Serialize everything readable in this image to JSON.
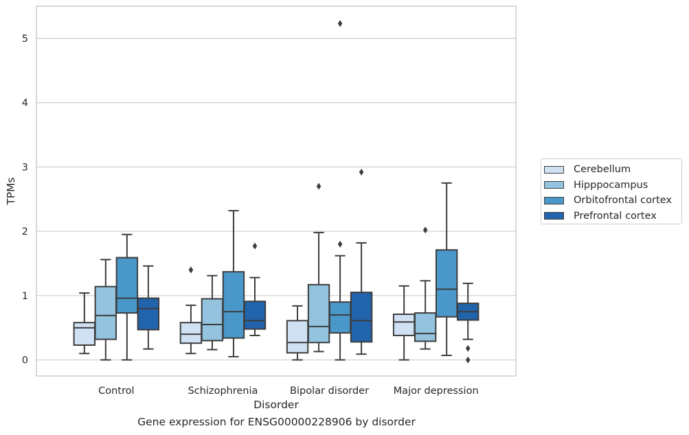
{
  "caption": "Gene expression for ENSG00000228906 by disorder",
  "chart_data": {
    "type": "box",
    "xlabel": "Disorder",
    "ylabel": "TPMs",
    "ylim": [
      -0.25,
      5.5
    ],
    "yticks": [
      0,
      1,
      2,
      3,
      4,
      5
    ],
    "grid": "horizontal",
    "legend_position": "right",
    "categories": [
      "Control",
      "Schizophrenia",
      "Bipolar disorder",
      "Major depression"
    ],
    "series": [
      {
        "name": "Cerebellum",
        "color": "#cfe1f2",
        "boxes": [
          {
            "whislo": 0.1,
            "q1": 0.23,
            "med": 0.5,
            "q3": 0.58,
            "whishi": 1.04,
            "fliers": []
          },
          {
            "whislo": 0.1,
            "q1": 0.26,
            "med": 0.4,
            "q3": 0.58,
            "whishi": 0.85,
            "fliers": [
              1.4
            ]
          },
          {
            "whislo": 0.0,
            "q1": 0.11,
            "med": 0.27,
            "q3": 0.61,
            "whishi": 0.84,
            "fliers": []
          },
          {
            "whislo": 0.0,
            "q1": 0.38,
            "med": 0.59,
            "q3": 0.71,
            "whishi": 1.15,
            "fliers": []
          }
        ]
      },
      {
        "name": "Hipppocampus",
        "color": "#93c3df",
        "boxes": [
          {
            "whislo": 0.0,
            "q1": 0.32,
            "med": 0.69,
            "q3": 1.14,
            "whishi": 1.56,
            "fliers": []
          },
          {
            "whislo": 0.16,
            "q1": 0.3,
            "med": 0.55,
            "q3": 0.95,
            "whishi": 1.31,
            "fliers": []
          },
          {
            "whislo": 0.13,
            "q1": 0.27,
            "med": 0.52,
            "q3": 1.17,
            "whishi": 1.98,
            "fliers": [
              2.7
            ]
          },
          {
            "whislo": 0.17,
            "q1": 0.29,
            "med": 0.41,
            "q3": 0.73,
            "whishi": 1.23,
            "fliers": [
              2.02
            ]
          }
        ]
      },
      {
        "name": "Orbitofrontal cortex",
        "color": "#4a98c9",
        "boxes": [
          {
            "whislo": 0.0,
            "q1": 0.73,
            "med": 0.96,
            "q3": 1.59,
            "whishi": 1.95,
            "fliers": []
          },
          {
            "whislo": 0.05,
            "q1": 0.34,
            "med": 0.75,
            "q3": 1.37,
            "whishi": 2.32,
            "fliers": []
          },
          {
            "whislo": 0.0,
            "q1": 0.42,
            "med": 0.7,
            "q3": 0.9,
            "whishi": 1.62,
            "fliers": [
              1.8,
              5.23
            ]
          },
          {
            "whislo": 0.07,
            "q1": 0.67,
            "med": 1.1,
            "q3": 1.71,
            "whishi": 2.75,
            "fliers": []
          }
        ]
      },
      {
        "name": "Prefrontal cortex",
        "color": "#2164ab",
        "boxes": [
          {
            "whislo": 0.17,
            "q1": 0.47,
            "med": 0.8,
            "q3": 0.96,
            "whishi": 1.46,
            "fliers": []
          },
          {
            "whislo": 0.38,
            "q1": 0.48,
            "med": 0.61,
            "q3": 0.91,
            "whishi": 1.28,
            "fliers": [
              1.77
            ]
          },
          {
            "whislo": 0.09,
            "q1": 0.28,
            "med": 0.61,
            "q3": 1.05,
            "whishi": 1.82,
            "fliers": [
              2.92
            ]
          },
          {
            "whislo": 0.32,
            "q1": 0.62,
            "med": 0.75,
            "q3": 0.88,
            "whishi": 1.19,
            "fliers": [
              0.0,
              0.18
            ]
          }
        ]
      }
    ]
  }
}
